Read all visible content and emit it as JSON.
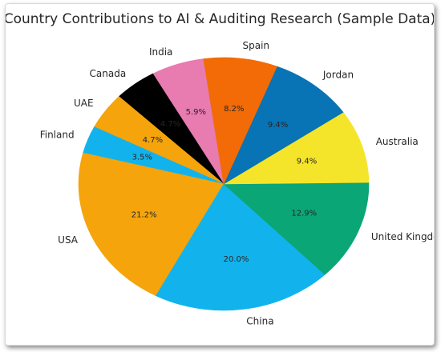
{
  "chart_data": {
    "type": "pie",
    "title": "Country Contributions to AI & Auditing Research (Sample Data)",
    "start_angle_deg": 98,
    "direction": "counterclockwise",
    "categories": [
      "India",
      "Canada",
      "UAE",
      "Finland",
      "USA",
      "China",
      "United Kingdom",
      "Australia",
      "Jordan",
      "Spain"
    ],
    "values": [
      5.9,
      4.7,
      4.7,
      3.5,
      21.2,
      20.0,
      12.9,
      9.4,
      9.4,
      8.2
    ],
    "percent_labels": [
      "5.9%",
      "4.7%",
      "4.7%",
      "3.5%",
      "21.2%",
      "20.0%",
      "12.9%",
      "9.4%",
      "9.4%",
      "8.2%"
    ],
    "colors": [
      "#e87bb0",
      "#000000",
      "#f5a40c",
      "#12b3ec",
      "#f5a40c",
      "#12b3ec",
      "#0aa676",
      "#f5e52a",
      "#0873b5",
      "#f26b06"
    ],
    "legend": "none"
  }
}
